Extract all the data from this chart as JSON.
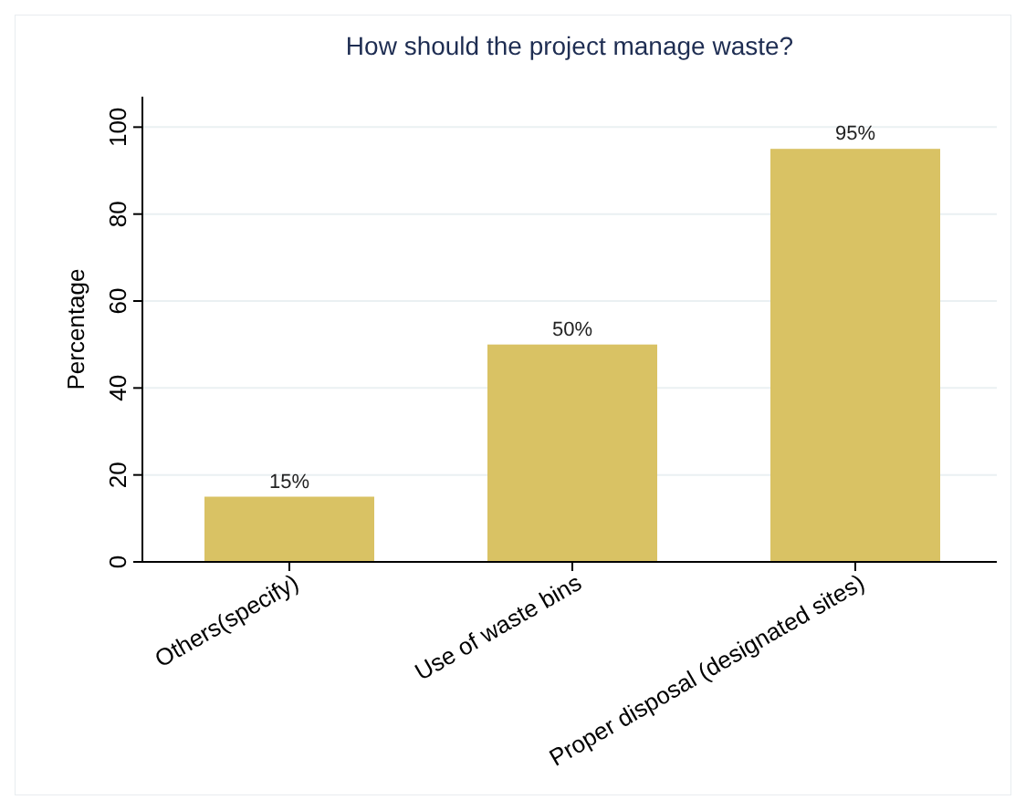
{
  "chart_data": {
    "type": "bar",
    "title": "How should the project manage waste?",
    "ylabel": "Percentage",
    "categories": [
      "Others(specify)",
      "Use of waste bins",
      "Proper disposal (designated sites)"
    ],
    "values": [
      15,
      50,
      95
    ],
    "color": "#d9c264",
    "value_labels": [
      "15%",
      "50%",
      "95%"
    ],
    "ylim": [
      0,
      107
    ],
    "yticks": [
      0,
      20,
      40,
      60,
      80,
      100
    ],
    "grid": "y"
  }
}
